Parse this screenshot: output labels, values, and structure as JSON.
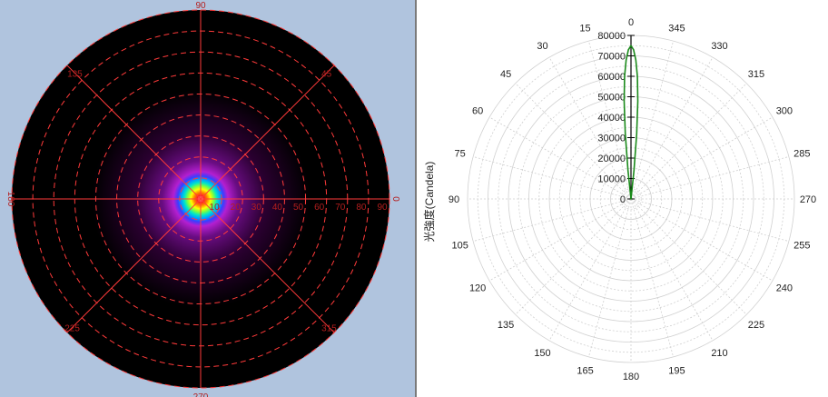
{
  "colors": {
    "left_background": "#b0c4de",
    "disk": "#000000",
    "grid": "#ff3a3a",
    "label": "#b41e1e",
    "curve": "#1a8a1a",
    "right_grid": "#d0d0d0",
    "right_label": "#222222"
  },
  "chart_data": [
    {
      "type": "heatmap",
      "description_kind": "polar-intensity-map",
      "angle_labels": [
        "90",
        "45",
        "0",
        "315",
        "270",
        "225",
        "180",
        "135"
      ],
      "radial_labels": [
        "10",
        "20",
        "30",
        "40",
        "50",
        "60",
        "70",
        "80",
        "90"
      ],
      "radial_max": 90,
      "color_scale": [
        "#000000",
        "#2a0030",
        "#6a0d83",
        "#b41fd0",
        "#3c3cff",
        "#00a0ff",
        "#00e6c8",
        "#7dff40",
        "#ffff00",
        "#ff8000",
        "#ff0000",
        "#ffffff"
      ],
      "grid": true
    },
    {
      "type": "line",
      "subtype": "polar",
      "ylabel": "光強度(Candela)",
      "theta_labels": [
        "0",
        "15",
        "30",
        "45",
        "60",
        "75",
        "90",
        "105",
        "120",
        "135",
        "150",
        "165",
        "180",
        "195",
        "210",
        "225",
        "240",
        "255",
        "270",
        "285",
        "300",
        "315",
        "330",
        "345"
      ],
      "r_ticks": [
        0,
        10000,
        20000,
        30000,
        40000,
        50000,
        60000,
        70000,
        80000
      ],
      "rlim": [
        0,
        80000
      ],
      "grid": true,
      "series": [
        {
          "theta": [
            -7,
            -6,
            -5,
            -4,
            -3,
            -2,
            -1,
            0,
            1,
            2,
            3,
            4,
            5,
            6,
            7
          ],
          "r": [
            0,
            14000,
            32000,
            48000,
            60000,
            68000,
            73000,
            75000,
            73000,
            68000,
            60000,
            48000,
            32000,
            14000,
            0
          ]
        }
      ]
    }
  ]
}
